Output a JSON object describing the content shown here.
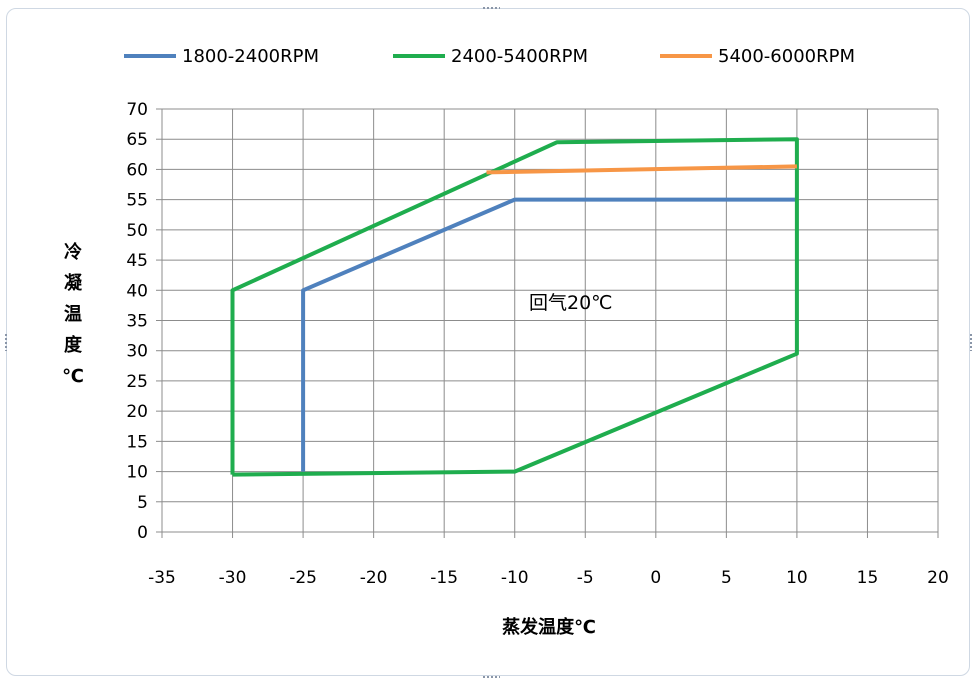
{
  "chart_data": {
    "type": "line",
    "title": "",
    "xlabel": "蒸发温度℃",
    "ylabel": "冷凝温度℃",
    "xlim": [
      -35,
      20
    ],
    "ylim": [
      0,
      70
    ],
    "x_ticks": [
      -35,
      -30,
      -25,
      -20,
      -15,
      -10,
      -5,
      0,
      5,
      10,
      15,
      20
    ],
    "y_ticks": [
      0,
      5,
      10,
      15,
      20,
      25,
      30,
      35,
      40,
      45,
      50,
      55,
      60,
      65,
      70
    ],
    "grid": true,
    "legend_position": "top",
    "annotation": {
      "text": "回气20℃",
      "x": -9,
      "y": 38
    },
    "series": [
      {
        "name": "1800-2400RPM",
        "color": "#4f81bd",
        "points": [
          [
            -25,
            10
          ],
          [
            -25,
            40
          ],
          [
            -10,
            55
          ],
          [
            10,
            55
          ]
        ]
      },
      {
        "name": "2400-5400RPM",
        "color": "#1fad4e",
        "points": [
          [
            -30,
            9.5
          ],
          [
            -30,
            40
          ],
          [
            -7,
            64.5
          ],
          [
            10,
            65
          ],
          [
            10,
            29.5
          ],
          [
            -10,
            10
          ],
          [
            -30,
            9.5
          ]
        ]
      },
      {
        "name": "5400-6000RPM",
        "color": "#f79646",
        "points": [
          [
            -12,
            59.5
          ],
          [
            10,
            60.5
          ]
        ]
      }
    ]
  }
}
